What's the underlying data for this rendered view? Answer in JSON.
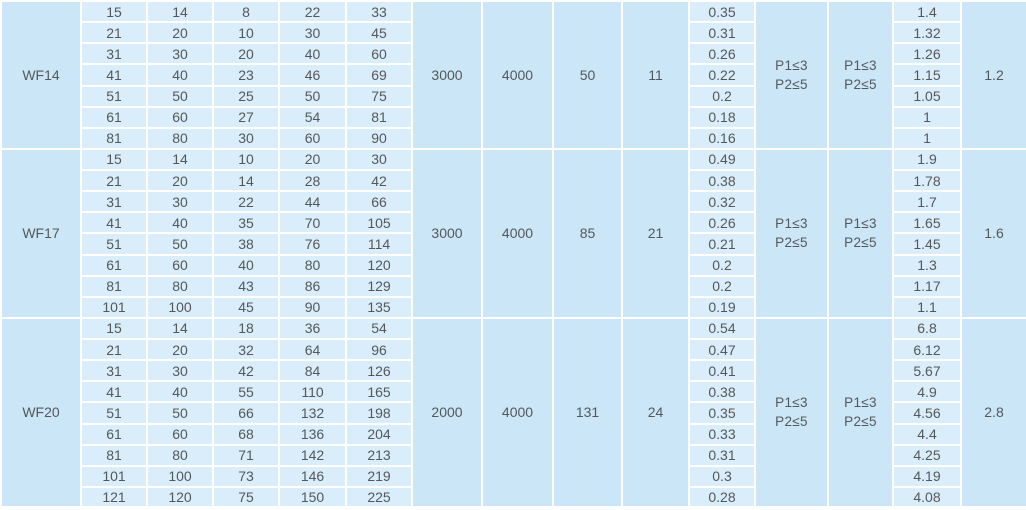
{
  "colors": {
    "grid": "#ffffff",
    "merged_cell_bg": "#cbe6f6",
    "value_cell_bg": "#daedfa",
    "text": "#55585b"
  },
  "table": {
    "sections": [
      {
        "model": "WF14",
        "rows": [
          {
            "cells": [
              "15",
              "14",
              "8",
              "22",
              "33"
            ],
            "v1": "0.35",
            "v2": "1.4"
          },
          {
            "cells": [
              "21",
              "20",
              "10",
              "30",
              "45"
            ],
            "v1": "0.31",
            "v2": "1.32"
          },
          {
            "cells": [
              "31",
              "30",
              "20",
              "40",
              "60"
            ],
            "v1": "0.26",
            "v2": "1.26"
          },
          {
            "cells": [
              "41",
              "40",
              "23",
              "46",
              "69"
            ],
            "v1": "0.22",
            "v2": "1.15"
          },
          {
            "cells": [
              "51",
              "50",
              "25",
              "50",
              "75"
            ],
            "v1": "0.2",
            "v2": "1.05"
          },
          {
            "cells": [
              "61",
              "60",
              "27",
              "54",
              "81"
            ],
            "v1": "0.18",
            "v2": "1"
          },
          {
            "cells": [
              "81",
              "80",
              "30",
              "60",
              "90"
            ],
            "v1": "0.16",
            "v2": "1"
          }
        ],
        "merged": {
          "m1": "3000",
          "m2": "4000",
          "m3": "50",
          "m4": "11",
          "p1": {
            "line1": "P1≤3",
            "line2": "P2≤5"
          },
          "p2": {
            "line1": "P1≤3",
            "line2": "P2≤5"
          },
          "m5": "1.2"
        }
      },
      {
        "model": "WF17",
        "rows": [
          {
            "cells": [
              "15",
              "14",
              "10",
              "20",
              "30"
            ],
            "v1": "0.49",
            "v2": "1.9"
          },
          {
            "cells": [
              "21",
              "20",
              "14",
              "28",
              "42"
            ],
            "v1": "0.38",
            "v2": "1.78"
          },
          {
            "cells": [
              "31",
              "30",
              "22",
              "44",
              "66"
            ],
            "v1": "0.32",
            "v2": "1.7"
          },
          {
            "cells": [
              "41",
              "40",
              "35",
              "70",
              "105"
            ],
            "v1": "0.26",
            "v2": "1.65"
          },
          {
            "cells": [
              "51",
              "50",
              "38",
              "76",
              "114"
            ],
            "v1": "0.21",
            "v2": "1.45"
          },
          {
            "cells": [
              "61",
              "60",
              "40",
              "80",
              "120"
            ],
            "v1": "0.2",
            "v2": "1.3"
          },
          {
            "cells": [
              "81",
              "80",
              "43",
              "86",
              "129"
            ],
            "v1": "0.2",
            "v2": "1.17"
          },
          {
            "cells": [
              "101",
              "100",
              "45",
              "90",
              "135"
            ],
            "v1": "0.19",
            "v2": "1.1"
          }
        ],
        "merged": {
          "m1": "3000",
          "m2": "4000",
          "m3": "85",
          "m4": "21",
          "p1": {
            "line1": "P1≤3",
            "line2": "P2≤5"
          },
          "p2": {
            "line1": "P1≤3",
            "line2": "P2≤5"
          },
          "m5": "1.6"
        }
      },
      {
        "model": "WF20",
        "rows": [
          {
            "cells": [
              "15",
              "14",
              "18",
              "36",
              "54"
            ],
            "v1": "0.54",
            "v2": "6.8"
          },
          {
            "cells": [
              "21",
              "20",
              "32",
              "64",
              "96"
            ],
            "v1": "0.47",
            "v2": "6.12"
          },
          {
            "cells": [
              "31",
              "30",
              "42",
              "84",
              "126"
            ],
            "v1": "0.41",
            "v2": "5.67"
          },
          {
            "cells": [
              "41",
              "40",
              "55",
              "110",
              "165"
            ],
            "v1": "0.38",
            "v2": "4.9"
          },
          {
            "cells": [
              "51",
              "50",
              "66",
              "132",
              "198"
            ],
            "v1": "0.35",
            "v2": "4.56"
          },
          {
            "cells": [
              "61",
              "60",
              "68",
              "136",
              "204"
            ],
            "v1": "0.33",
            "v2": "4.4"
          },
          {
            "cells": [
              "81",
              "80",
              "71",
              "142",
              "213"
            ],
            "v1": "0.31",
            "v2": "4.25"
          },
          {
            "cells": [
              "101",
              "100",
              "73",
              "146",
              "219"
            ],
            "v1": "0.3",
            "v2": "4.19"
          },
          {
            "cells": [
              "121",
              "120",
              "75",
              "150",
              "225"
            ],
            "v1": "0.28",
            "v2": "4.08"
          }
        ],
        "merged": {
          "m1": "2000",
          "m2": "4000",
          "m3": "131",
          "m4": "24",
          "p1": {
            "line1": "P1≤3",
            "line2": "P2≤5"
          },
          "p2": {
            "line1": "P1≤3",
            "line2": "P2≤5"
          },
          "m5": "2.8"
        }
      }
    ]
  }
}
